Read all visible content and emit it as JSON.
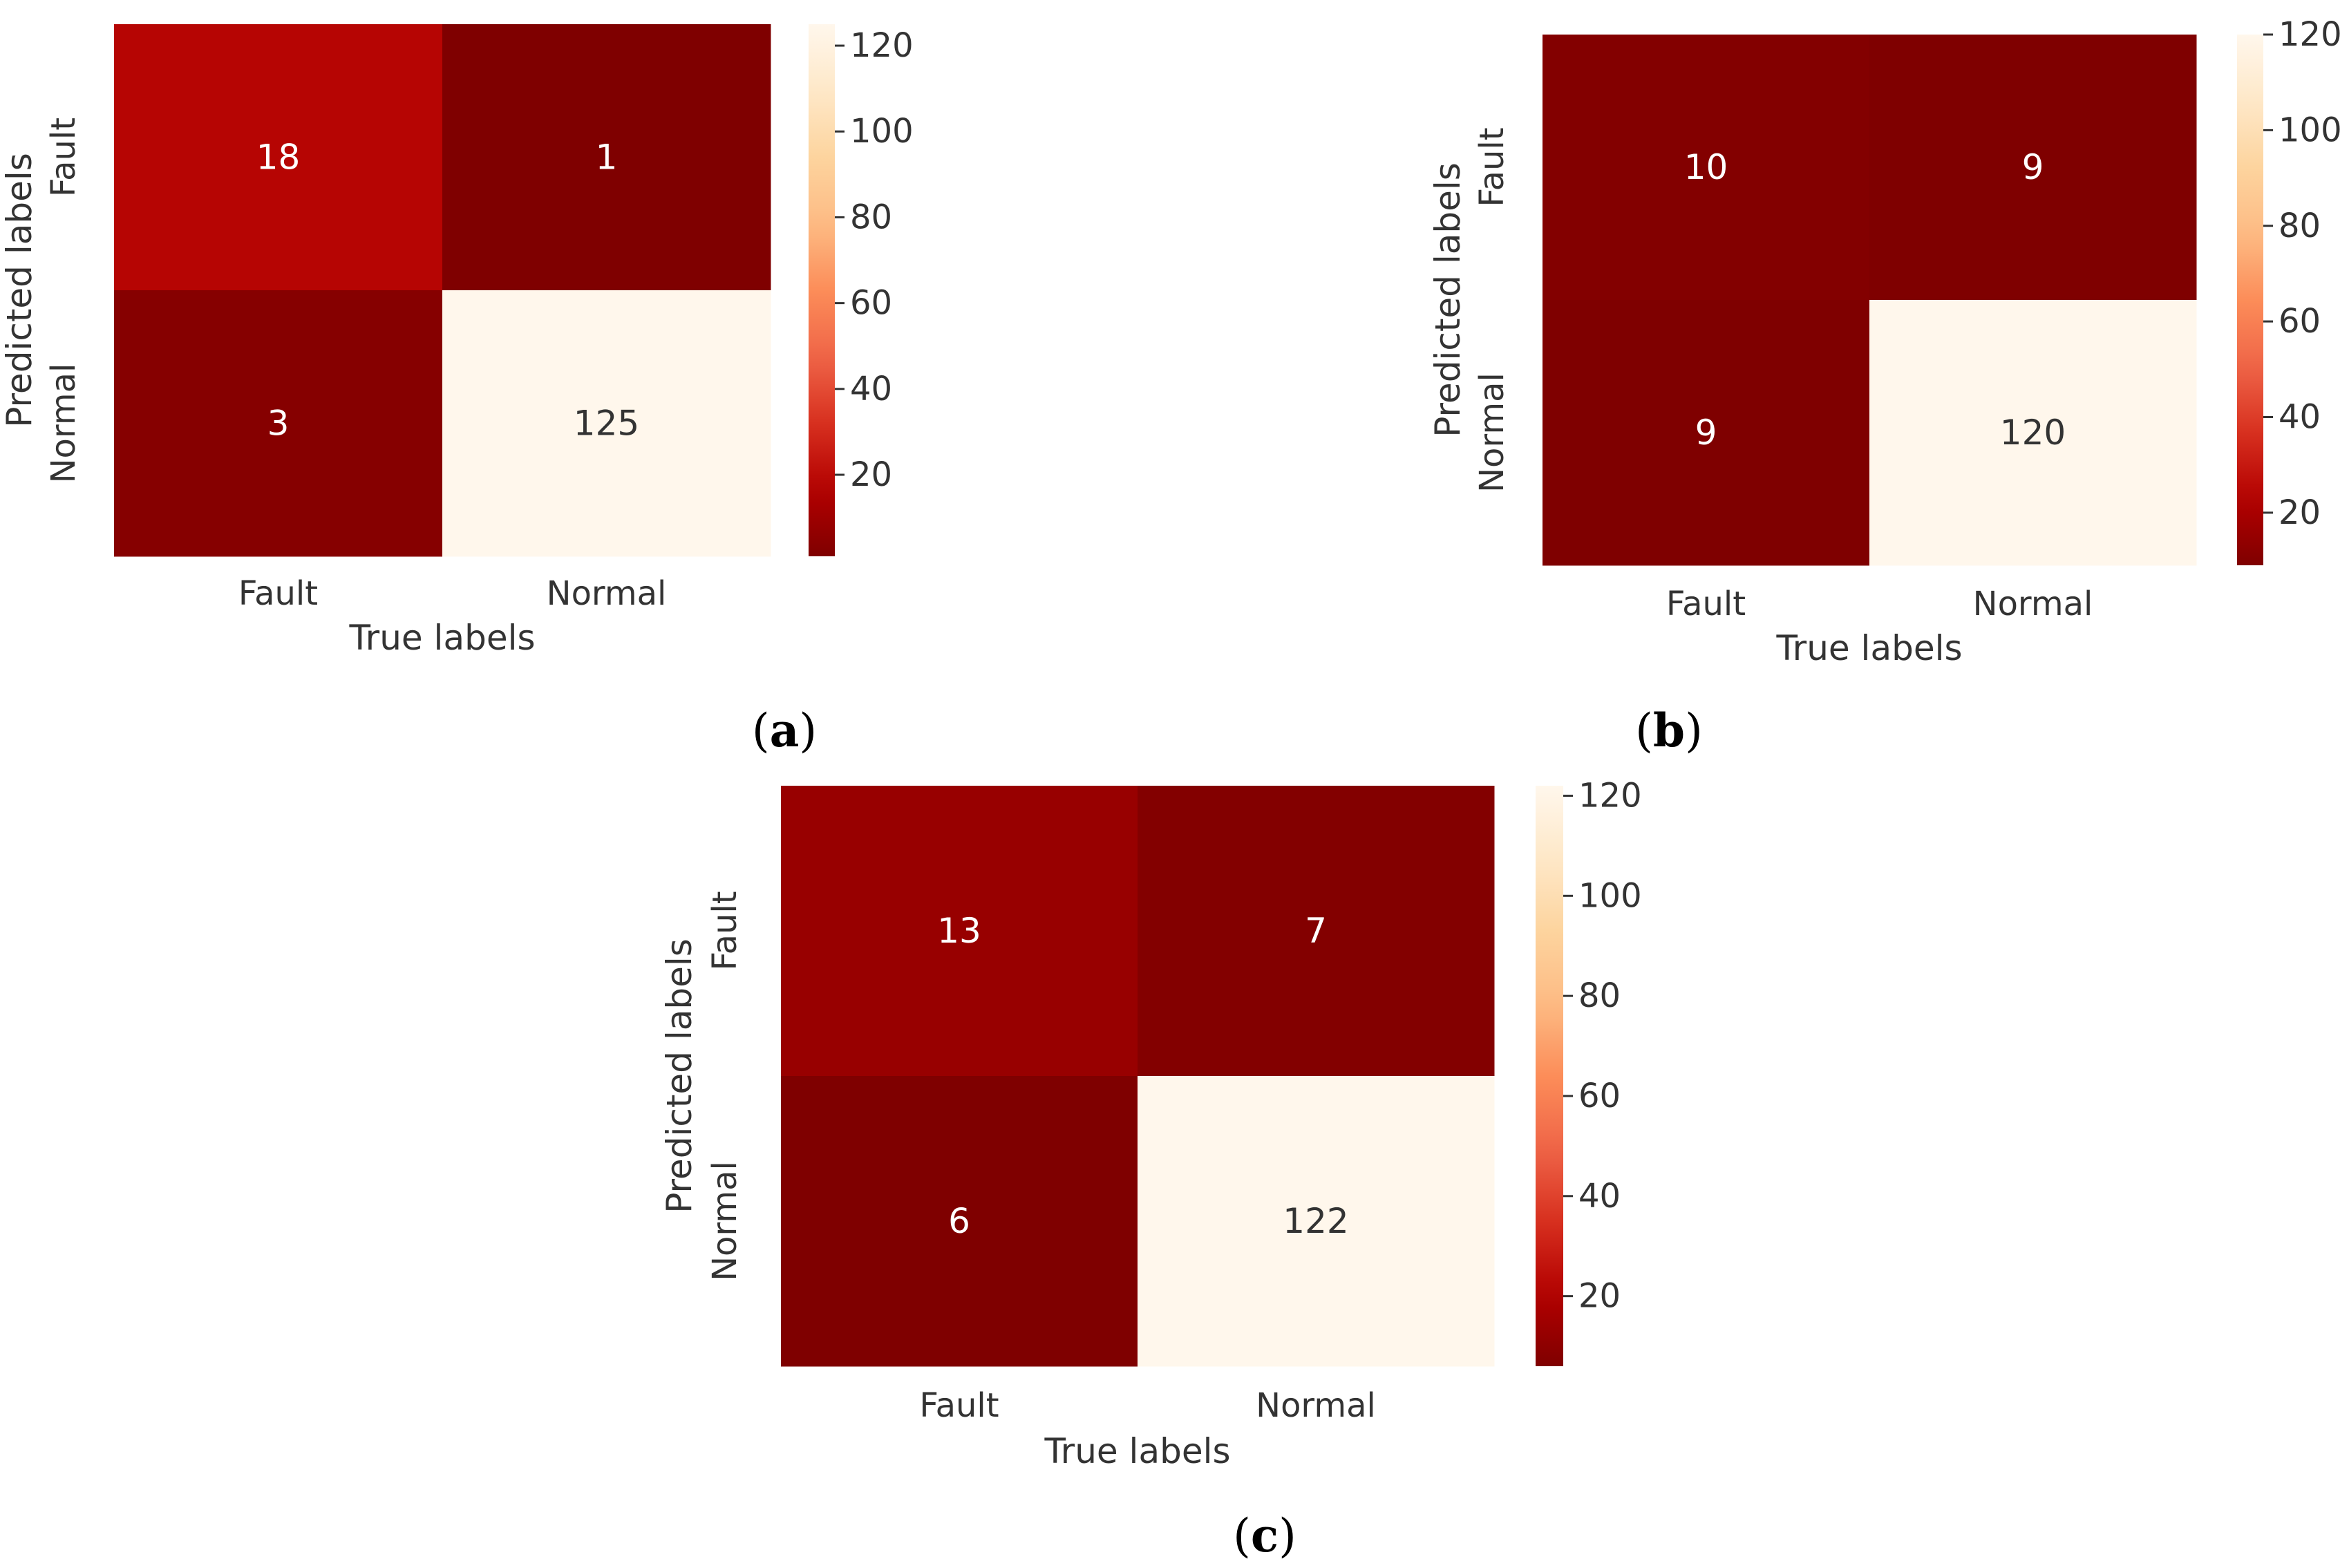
{
  "chart_data": [
    {
      "type": "heatmap",
      "panel": "a",
      "xlabel": "True labels",
      "ylabel": "Predicted labels",
      "x_categories": [
        "Fault",
        "Normal"
      ],
      "y_categories": [
        "Fault",
        "Normal"
      ],
      "values": [
        [
          18,
          1
        ],
        [
          3,
          125
        ]
      ],
      "colorbar": {
        "min": 1,
        "max": 125,
        "ticks": [
          20,
          40,
          60,
          80,
          100,
          120
        ]
      }
    },
    {
      "type": "heatmap",
      "panel": "b",
      "xlabel": "True labels",
      "ylabel": "Predicted labels",
      "x_categories": [
        "Fault",
        "Normal"
      ],
      "y_categories": [
        "Fault",
        "Normal"
      ],
      "values": [
        [
          10,
          9
        ],
        [
          9,
          120
        ]
      ],
      "colorbar": {
        "min": 9,
        "max": 120,
        "ticks": [
          20,
          40,
          60,
          80,
          100,
          120
        ]
      }
    },
    {
      "type": "heatmap",
      "panel": "c",
      "xlabel": "True labels",
      "ylabel": "Predicted labels",
      "x_categories": [
        "Fault",
        "Normal"
      ],
      "y_categories": [
        "Fault",
        "Normal"
      ],
      "values": [
        [
          13,
          7
        ],
        [
          6,
          122
        ]
      ],
      "colorbar": {
        "min": 6,
        "max": 122,
        "ticks": [
          20,
          40,
          60,
          80,
          100,
          120
        ]
      }
    }
  ],
  "colormap": {
    "name": "OrRd_r",
    "stops": [
      "#7f0000",
      "#b30000",
      "#d7301f",
      "#ef6548",
      "#fc8d59",
      "#fdbb84",
      "#fdd49e",
      "#fee8c8",
      "#fff7ec"
    ]
  },
  "panel_labels": [
    {
      "open": "(",
      "letter": "a",
      "close": ")"
    },
    {
      "open": "(",
      "letter": "b",
      "close": ")"
    },
    {
      "open": "(",
      "letter": "c",
      "close": ")"
    }
  ]
}
